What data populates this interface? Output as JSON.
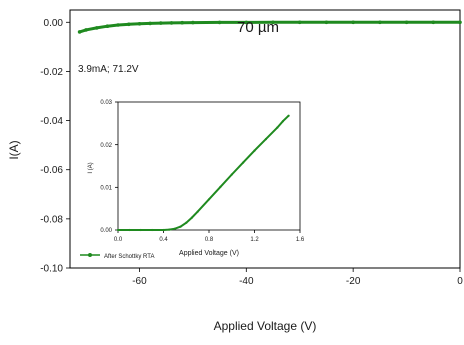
{
  "colors": {
    "series": "#1f8a1f",
    "axis": "#000000",
    "background": "#ffffff"
  },
  "chart_data": [
    {
      "type": "line",
      "title": "70 µm",
      "xlabel": "Applied Voltage (V)",
      "ylabel": "I(A)",
      "xlim": [
        -73,
        0
      ],
      "ylim": [
        -0.1,
        0.005
      ],
      "xticks": [
        -60,
        -40,
        -20,
        0
      ],
      "yticks": [
        -0.1,
        -0.08,
        -0.06,
        -0.04,
        -0.02,
        0.0
      ],
      "xtick_labels": [
        "-60",
        "-40",
        "-20",
        "0"
      ],
      "ytick_labels": [
        "-0.10",
        "-0.08",
        "-0.06",
        "-0.04",
        "-0.02",
        "0.00"
      ],
      "annotation": "3.9mA; 71.2V",
      "grid": false,
      "legend_position": "bottom-left",
      "series": [
        {
          "name": "After Schottky RTA",
          "x": [
            -71.2,
            -70,
            -68,
            -66,
            -64,
            -62,
            -60,
            -58,
            -56,
            -54,
            -52,
            -50,
            -45,
            -40,
            -35,
            -30,
            -25,
            -20,
            -15,
            -10,
            -5,
            0
          ],
          "y": [
            -0.0039,
            -0.0031,
            -0.0023,
            -0.0016,
            -0.0011,
            -0.0008,
            -0.0006,
            -0.00045,
            -0.00033,
            -0.00024,
            -0.00017,
            -0.00012,
            -6e-05,
            -3e-05,
            -2e-05,
            -1e-05,
            -1e-05,
            0,
            0,
            0,
            0,
            0
          ]
        }
      ]
    },
    {
      "type": "line",
      "xlabel": "Applied Voltage (V)",
      "ylabel": "I (A)",
      "xlim": [
        0,
        1.6
      ],
      "ylim": [
        0,
        0.03
      ],
      "xticks": [
        0,
        0.4,
        0.8,
        1.2,
        1.6
      ],
      "yticks": [
        0,
        0.01,
        0.02,
        0.03
      ],
      "xtick_labels": [
        "0.0",
        "0.4",
        "0.8",
        "1.2",
        "1.6"
      ],
      "ytick_labels": [
        "0.00",
        "0.01",
        "0.02",
        "0.03"
      ],
      "grid": false,
      "series": [
        {
          "x": [
            0,
            0.1,
            0.2,
            0.3,
            0.4,
            0.45,
            0.5,
            0.55,
            0.6,
            0.65,
            0.7,
            0.8,
            0.9,
            1.0,
            1.1,
            1.2,
            1.3,
            1.4,
            1.45,
            1.5
          ],
          "y": [
            0,
            0,
            0,
            0,
            0,
            0.0001,
            0.0003,
            0.0008,
            0.0017,
            0.0029,
            0.0043,
            0.0072,
            0.0101,
            0.013,
            0.0158,
            0.0186,
            0.0213,
            0.024,
            0.0255,
            0.0268
          ]
        }
      ]
    }
  ]
}
